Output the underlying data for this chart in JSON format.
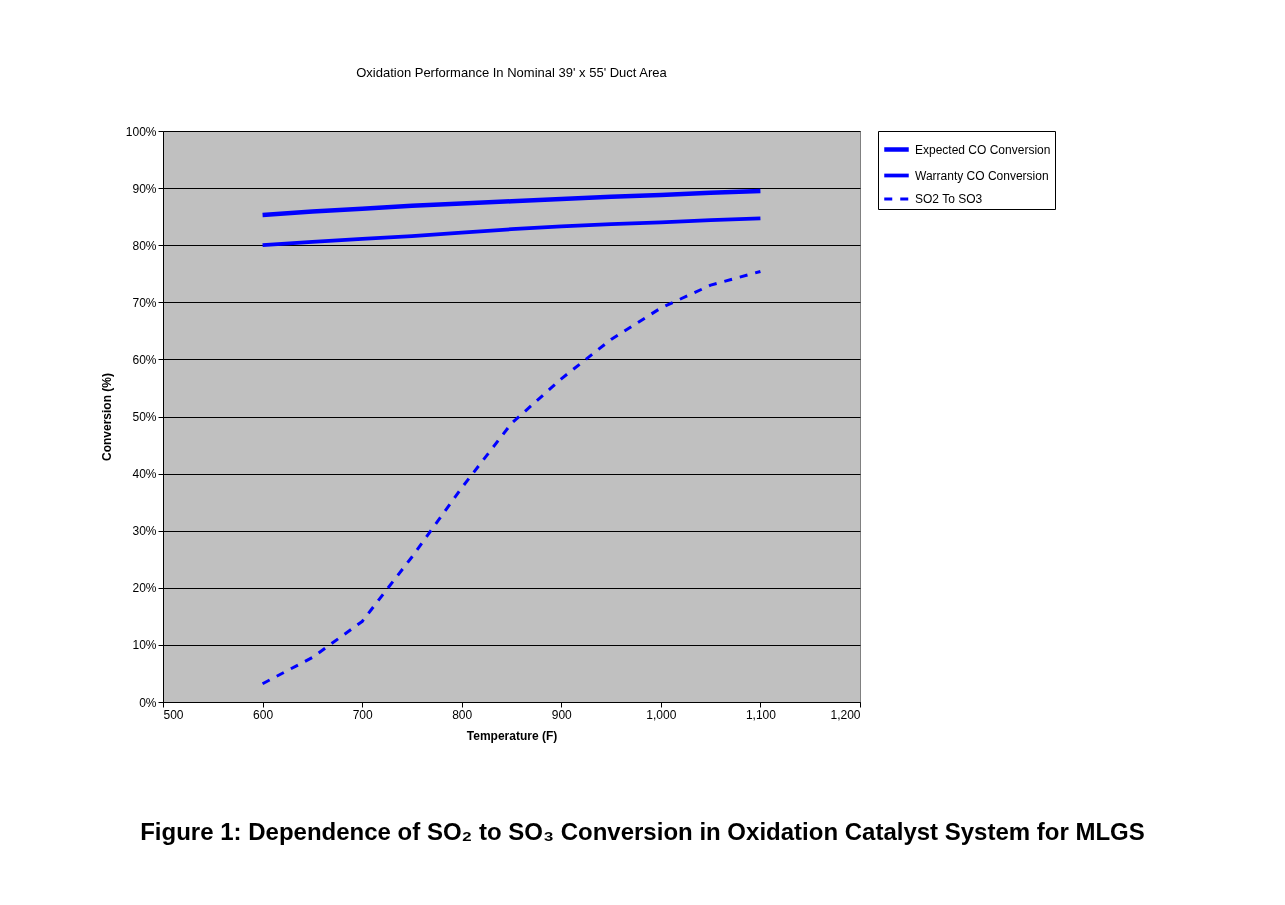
{
  "chart_data": {
    "type": "line",
    "title": "Oxidation Performance In Nominal 39' x 55' Duct Area",
    "xlabel": "Temperature (F)",
    "ylabel": "Conversion (%)",
    "x": [
      600,
      650,
      700,
      750,
      800,
      850,
      900,
      950,
      1000,
      1050,
      1100
    ],
    "series": [
      {
        "name": "Expected CO Conversion",
        "color": "#0000ff",
        "line_style": "solid",
        "values": [
          85.3,
          85.9,
          86.4,
          86.9,
          87.3,
          87.7,
          88.1,
          88.5,
          88.8,
          89.2,
          89.5
        ]
      },
      {
        "name": "Warranty CO Conversion",
        "color": "#0000ff",
        "line_style": "solid",
        "values": [
          80.0,
          80.6,
          81.1,
          81.6,
          82.2,
          82.8,
          83.3,
          83.7,
          84.0,
          84.4,
          84.7
        ]
      },
      {
        "name": "SO2 To SO3",
        "color": "#0000ff",
        "line_style": "dashed",
        "values": [
          3.2,
          7.8,
          14.1,
          25.4,
          37.5,
          48.8,
          56.6,
          63.5,
          69.0,
          73.0,
          75.4
        ]
      }
    ],
    "xlim": [
      500,
      1200
    ],
    "xticks": [
      500,
      600,
      700,
      800,
      900,
      {
        "value": 1000,
        "label": "1,000"
      },
      {
        "value": 1100,
        "label": "1,100"
      },
      {
        "value": 1200,
        "label": "1,200"
      }
    ],
    "ylim": [
      0,
      100
    ],
    "yticks": [
      {
        "value": 0,
        "label": "0%"
      },
      {
        "value": 10,
        "label": "10%"
      },
      {
        "value": 20,
        "label": "20%"
      },
      {
        "value": 30,
        "label": "30%"
      },
      {
        "value": 40,
        "label": "40%"
      },
      {
        "value": 50,
        "label": "50%"
      },
      {
        "value": 60,
        "label": "60%"
      },
      {
        "value": 70,
        "label": "70%"
      },
      {
        "value": 80,
        "label": "80%"
      },
      {
        "value": 90,
        "label": "90%"
      },
      {
        "value": 100,
        "label": "100%"
      }
    ],
    "grid": "y",
    "legend": "right",
    "marker": "none",
    "annotations": [
      "Figure 1: Dependence of SO₂ to SO₃ Conversion in Oxidation Catalyst System for MLGS"
    ]
  }
}
